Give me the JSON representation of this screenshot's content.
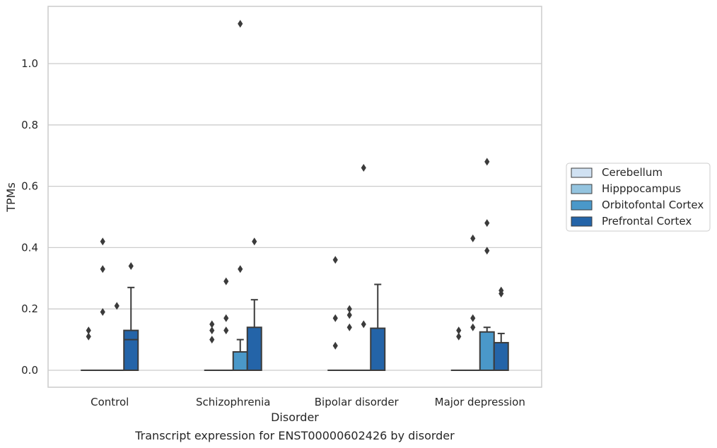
{
  "chart_data": {
    "type": "box",
    "title": "Transcript expression for ENST00000602426 by disorder",
    "xlabel": "Disorder",
    "ylabel": "TPMs",
    "ylim": [
      -0.055,
      1.19
    ],
    "yticks": [
      0.0,
      0.2,
      0.4,
      0.6,
      0.8,
      1.0
    ],
    "ytick_labels": [
      "0.0",
      "0.2",
      "0.4",
      "0.6",
      "0.8",
      "1.0"
    ],
    "grid": "horizontal",
    "legend_position": "right",
    "categories": [
      "Control",
      "Schizophrenia",
      "Bipolar disorder",
      "Major depression"
    ],
    "series": [
      {
        "name": "Cerebellum",
        "color": "#d0e1f2",
        "boxes": [
          {
            "q1": 0,
            "median": 0,
            "q3": 0,
            "whisker_low": 0,
            "whisker_high": 0,
            "outliers": [
              0.11,
              0.13
            ]
          },
          {
            "q1": 0,
            "median": 0,
            "q3": 0,
            "whisker_low": 0,
            "whisker_high": 0,
            "outliers": [
              0.1,
              0.13,
              0.15
            ]
          },
          {
            "q1": 0,
            "median": 0,
            "q3": 0,
            "whisker_low": 0,
            "whisker_high": 0,
            "outliers": [
              0.08,
              0.17,
              0.36
            ]
          },
          {
            "q1": 0,
            "median": 0,
            "q3": 0,
            "whisker_low": 0,
            "whisker_high": 0,
            "outliers": [
              0.11,
              0.13
            ]
          }
        ]
      },
      {
        "name": "Hipppocampus",
        "color": "#94c4df",
        "boxes": [
          {
            "q1": 0,
            "median": 0,
            "q3": 0,
            "whisker_low": 0,
            "whisker_high": 0,
            "outliers": [
              0.19,
              0.33,
              0.42
            ]
          },
          {
            "q1": 0,
            "median": 0,
            "q3": 0,
            "whisker_low": 0,
            "whisker_high": 0,
            "outliers": [
              0.13,
              0.17,
              0.29
            ]
          },
          {
            "q1": 0,
            "median": 0,
            "q3": 0,
            "whisker_low": 0,
            "whisker_high": 0,
            "outliers": [
              0.14,
              0.18,
              0.2
            ]
          },
          {
            "q1": 0,
            "median": 0,
            "q3": 0,
            "whisker_low": 0,
            "whisker_high": 0,
            "outliers": [
              0.14,
              0.17,
              0.43
            ]
          }
        ]
      },
      {
        "name": "Orbitofontal Cortex",
        "color": "#4a98c9",
        "boxes": [
          {
            "q1": 0,
            "median": 0,
            "q3": 0,
            "whisker_low": 0,
            "whisker_high": 0,
            "outliers": [
              0.21
            ]
          },
          {
            "q1": 0,
            "median": 0,
            "q3": 0.06,
            "whisker_low": 0,
            "whisker_high": 0.1,
            "outliers": [
              0.33,
              1.13
            ]
          },
          {
            "q1": 0,
            "median": 0,
            "q3": 0,
            "whisker_low": 0,
            "whisker_high": 0,
            "outliers": [
              0.15,
              0.66
            ]
          },
          {
            "q1": 0,
            "median": 0,
            "q3": 0.125,
            "whisker_low": 0,
            "whisker_high": 0.14,
            "outliers": [
              0.39,
              0.48,
              0.68
            ]
          }
        ]
      },
      {
        "name": "Prefrontal Cortex",
        "color": "#2464a8",
        "boxes": [
          {
            "q1": 0,
            "median": 0.1,
            "q3": 0.13,
            "whisker_low": 0,
            "whisker_high": 0.27,
            "outliers": [
              0.34
            ]
          },
          {
            "q1": 0,
            "median": 0,
            "q3": 0.14,
            "whisker_low": 0,
            "whisker_high": 0.23,
            "outliers": [
              0.42
            ]
          },
          {
            "q1": 0,
            "median": 0,
            "q3": 0.137,
            "whisker_low": 0,
            "whisker_high": 0.28,
            "outliers": []
          },
          {
            "q1": 0,
            "median": 0,
            "q3": 0.09,
            "whisker_low": 0,
            "whisker_high": 0.12,
            "outliers": [
              0.25,
              0.26
            ]
          }
        ]
      }
    ]
  }
}
